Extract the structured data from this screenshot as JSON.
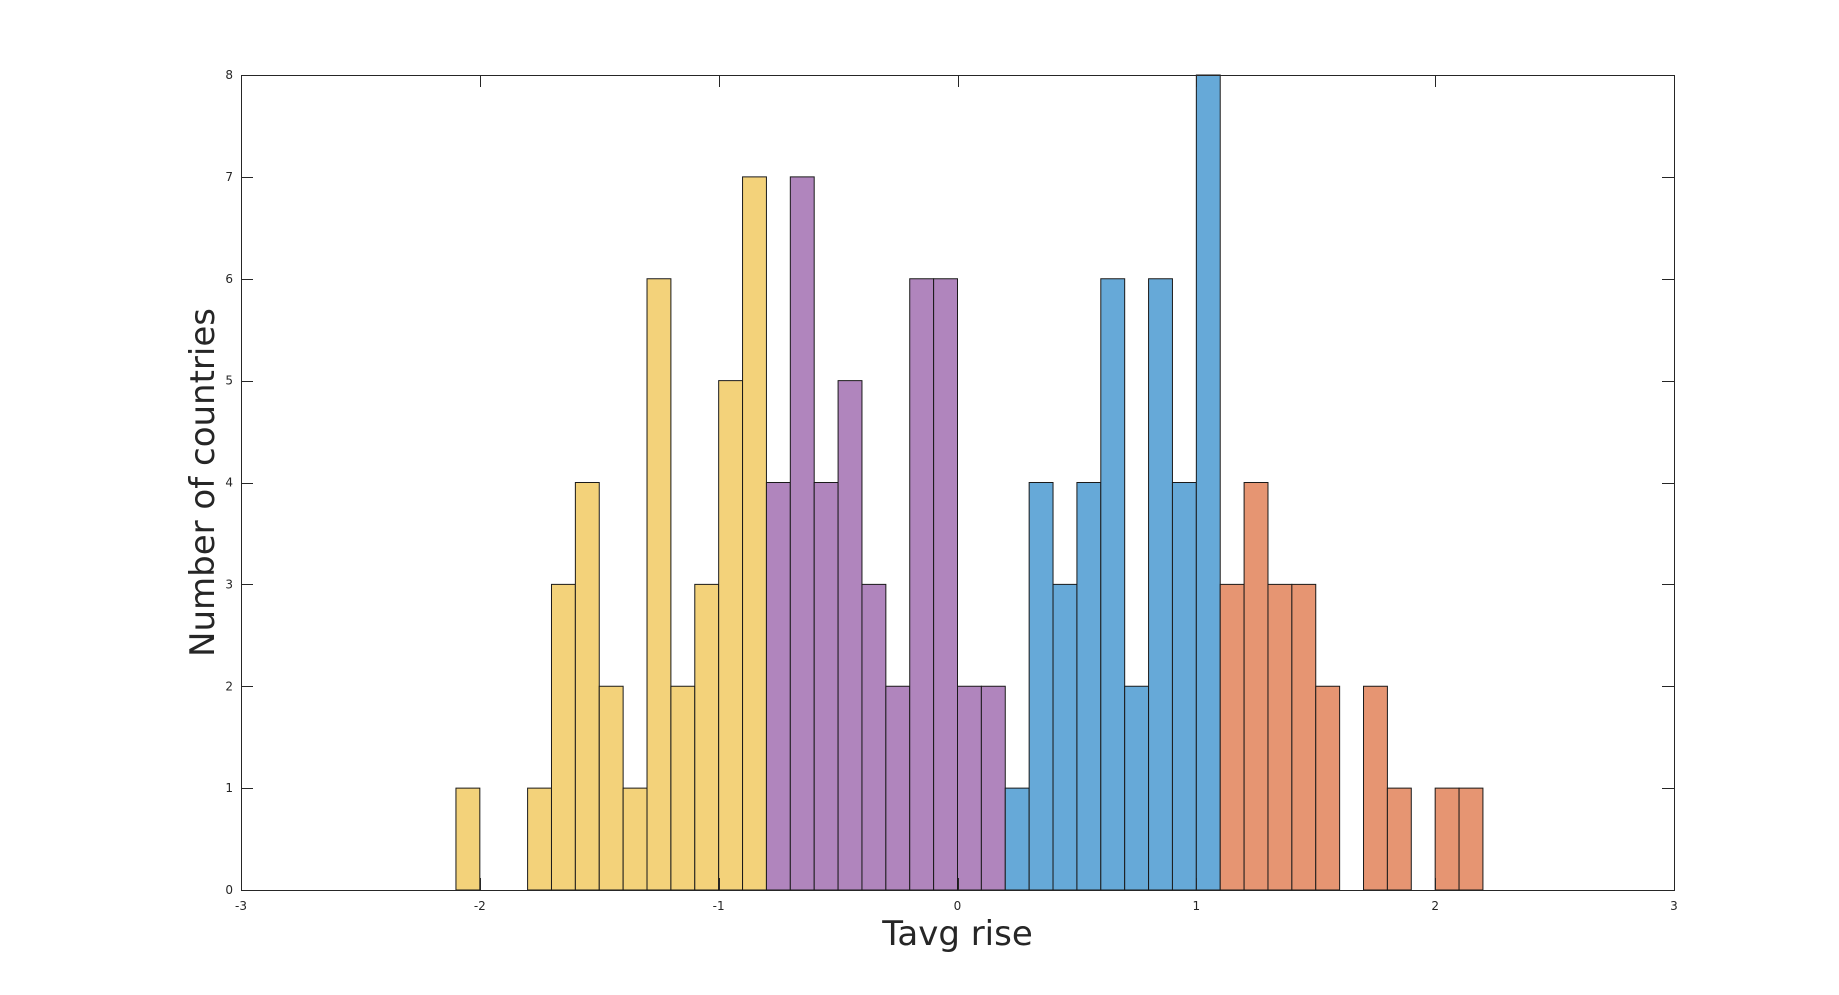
{
  "chart_data": {
    "type": "histogram",
    "title": "",
    "xlabel": "Tavg rise",
    "ylabel": "Number of countries",
    "xlim": [
      -3,
      3
    ],
    "ylim": [
      0,
      8
    ],
    "grid": false,
    "x_ticks": [
      -3,
      -2,
      -1,
      0,
      1,
      2,
      3
    ],
    "y_ticks": [
      0,
      1,
      2,
      3,
      4,
      5,
      6,
      7,
      8
    ],
    "bin_width": 0.1,
    "series": [
      {
        "color": "#F3D27A",
        "bins": [
          {
            "x0": -2.1,
            "x1": -2.0,
            "count": 1
          },
          {
            "x0": -1.8,
            "x1": -1.7,
            "count": 1
          },
          {
            "x0": -1.7,
            "x1": -1.6,
            "count": 3
          },
          {
            "x0": -1.6,
            "x1": -1.5,
            "count": 4
          },
          {
            "x0": -1.5,
            "x1": -1.4,
            "count": 2
          },
          {
            "x0": -1.4,
            "x1": -1.3,
            "count": 1
          },
          {
            "x0": -1.3,
            "x1": -1.2,
            "count": 6
          },
          {
            "x0": -1.2,
            "x1": -1.1,
            "count": 2
          },
          {
            "x0": -1.1,
            "x1": -1.0,
            "count": 3
          },
          {
            "x0": -1.0,
            "x1": -0.9,
            "count": 5
          },
          {
            "x0": -0.9,
            "x1": -0.8,
            "count": 7
          }
        ]
      },
      {
        "color": "#B085BD",
        "bins": [
          {
            "x0": -0.8,
            "x1": -0.7,
            "count": 4
          },
          {
            "x0": -0.7,
            "x1": -0.6,
            "count": 7
          },
          {
            "x0": -0.6,
            "x1": -0.5,
            "count": 4
          },
          {
            "x0": -0.5,
            "x1": -0.4,
            "count": 5
          },
          {
            "x0": -0.4,
            "x1": -0.3,
            "count": 3
          },
          {
            "x0": -0.3,
            "x1": -0.2,
            "count": 2
          },
          {
            "x0": -0.2,
            "x1": -0.1,
            "count": 6
          },
          {
            "x0": -0.1,
            "x1": 0.0,
            "count": 6
          },
          {
            "x0": 0.0,
            "x1": 0.1,
            "count": 2
          },
          {
            "x0": 0.1,
            "x1": 0.2,
            "count": 2
          }
        ]
      },
      {
        "color": "#66A9D8",
        "bins": [
          {
            "x0": 0.2,
            "x1": 0.3,
            "count": 1
          },
          {
            "x0": 0.3,
            "x1": 0.4,
            "count": 4
          },
          {
            "x0": 0.4,
            "x1": 0.5,
            "count": 3
          },
          {
            "x0": 0.5,
            "x1": 0.6,
            "count": 4
          },
          {
            "x0": 0.6,
            "x1": 0.7,
            "count": 6
          },
          {
            "x0": 0.7,
            "x1": 0.8,
            "count": 2
          },
          {
            "x0": 0.8,
            "x1": 0.9,
            "count": 6
          },
          {
            "x0": 0.9,
            "x1": 1.0,
            "count": 4
          },
          {
            "x0": 1.0,
            "x1": 1.1,
            "count": 8
          }
        ]
      },
      {
        "color": "#E69572",
        "bins": [
          {
            "x0": 1.1,
            "x1": 1.2,
            "count": 3
          },
          {
            "x0": 1.2,
            "x1": 1.3,
            "count": 4
          },
          {
            "x0": 1.3,
            "x1": 1.4,
            "count": 3
          },
          {
            "x0": 1.4,
            "x1": 1.5,
            "count": 3
          },
          {
            "x0": 1.5,
            "x1": 1.6,
            "count": 2
          },
          {
            "x0": 1.7,
            "x1": 1.8,
            "count": 2
          },
          {
            "x0": 1.8,
            "x1": 1.9,
            "count": 1
          },
          {
            "x0": 2.0,
            "x1": 2.1,
            "count": 1
          },
          {
            "x0": 2.1,
            "x1": 2.2,
            "count": 1
          }
        ]
      }
    ]
  }
}
